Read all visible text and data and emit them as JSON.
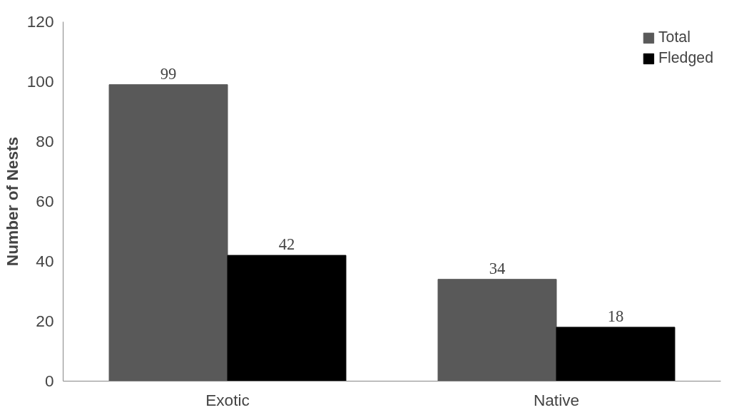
{
  "chart_data": {
    "type": "bar",
    "ylabel": "Number of Nests",
    "categories": [
      "Exotic",
      "Native"
    ],
    "series": [
      {
        "name": "Total",
        "color": "#595959",
        "values": [
          99,
          34
        ]
      },
      {
        "name": "Fledged",
        "color": "#000000",
        "values": [
          42,
          18
        ]
      }
    ],
    "ylim": [
      0,
      120
    ],
    "yticks": [
      0,
      20,
      40,
      60,
      80,
      100,
      120
    ],
    "grid": false,
    "legend": "top right",
    "data_labels": true
  }
}
